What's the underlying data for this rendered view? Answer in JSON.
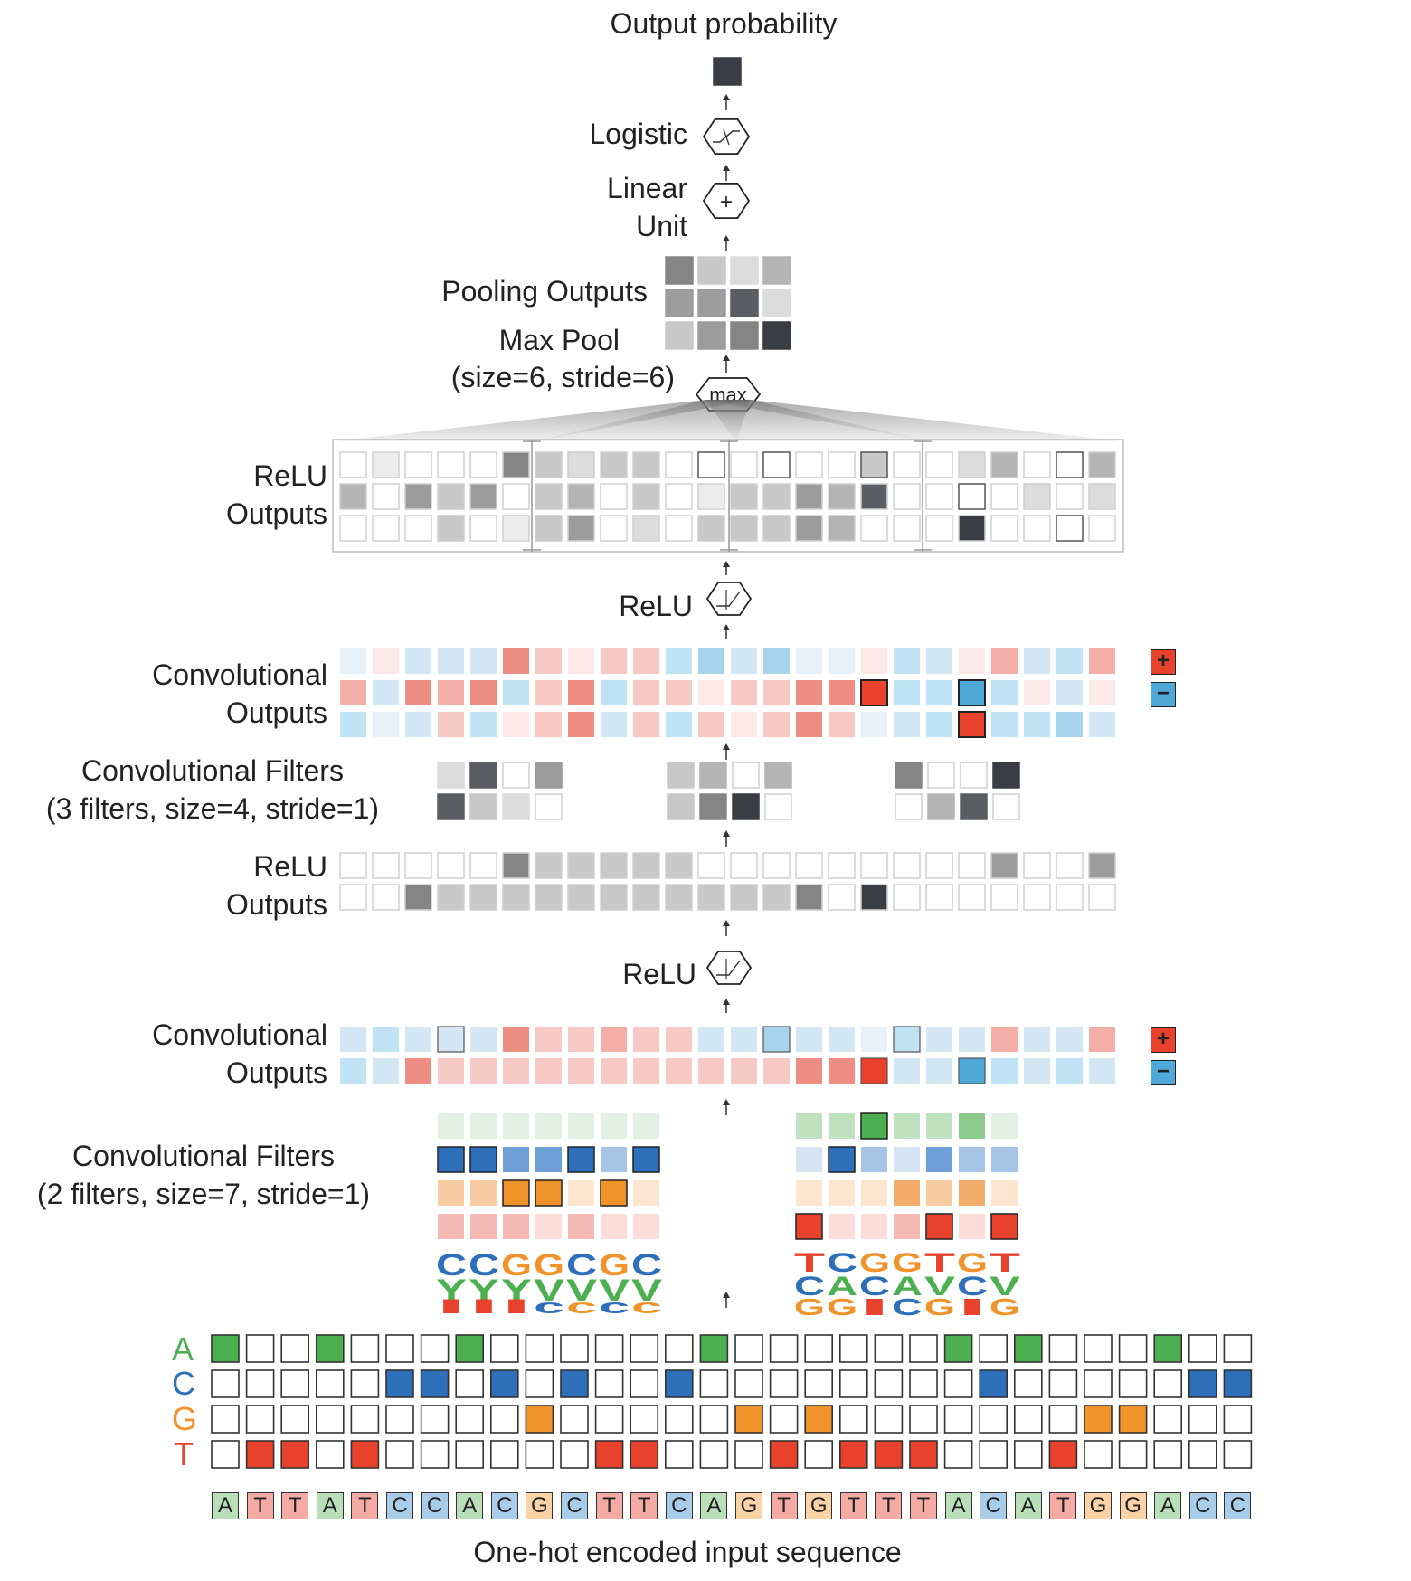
{
  "labels": {
    "output_probability": "Output probability",
    "logistic": "Logistic",
    "linear_unit_1": "Linear",
    "linear_unit_2": "Unit",
    "pooling_outputs": "Pooling Outputs",
    "max_pool_1": "Max Pool",
    "max_pool_2": "(size=6, stride=6)",
    "max_node": "max",
    "relu_outputs_top_1": "ReLU",
    "relu_outputs_top_2": "Outputs",
    "relu_top": "ReLU",
    "conv_outputs_top_1": "Convolutional",
    "conv_outputs_top_2": "Outputs",
    "conv_filters_top_1": "Convolutional Filters",
    "conv_filters_top_2": "(3 filters, size=4, stride=1)",
    "relu_outputs_mid_1": "ReLU",
    "relu_outputs_mid_2": "Outputs",
    "relu_mid": "ReLU",
    "conv_outputs_bot_1": "Convolutional",
    "conv_outputs_bot_2": "Outputs",
    "conv_filters_bot_1": "Convolutional Filters",
    "conv_filters_bot_2": "(2 filters, size=7, stride=1)",
    "input_caption": "One-hot encoded input sequence",
    "plus": "+",
    "minus": "−"
  },
  "nucleotides": [
    "A",
    "C",
    "G",
    "T"
  ],
  "sequence": [
    "A",
    "T",
    "T",
    "A",
    "T",
    "C",
    "C",
    "A",
    "C",
    "G",
    "C",
    "T",
    "T",
    "C",
    "A",
    "G",
    "T",
    "G",
    "T",
    "T",
    "T",
    "A",
    "C",
    "A",
    "T",
    "G",
    "G",
    "A",
    "C",
    "C"
  ],
  "logos": {
    "filter1": {
      "top": "CCGGCGC",
      "mid": "YYYVVVV",
      "bot": "IIIcccc"
    },
    "filter2": {
      "top": "TCGGTGT",
      "mid": "CACAVCV",
      "bot": "GGICGIG"
    }
  },
  "colors": {
    "A": "#4caf50",
    "C": "#2e6fba",
    "G": "#f0932b",
    "T": "#e8412c",
    "positive": "#e8412c",
    "negative": "#4ea8d8",
    "output": "#3a3d43"
  }
}
